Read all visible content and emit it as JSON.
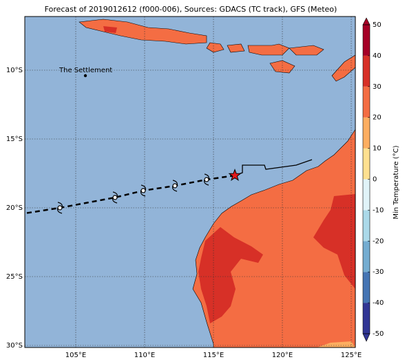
{
  "header": {
    "title": "Forecast of 2019012612 (f000-006), Sources: GDACS (TC track), GFS (Meteo)"
  },
  "map": {
    "xlim": [
      101.3,
      125.3
    ],
    "ylim": [
      -30.15,
      -6.1
    ],
    "xticks": [
      {
        "value": 105,
        "label": "105°E"
      },
      {
        "value": 110,
        "label": "110°E"
      },
      {
        "value": 115,
        "label": "115°E"
      },
      {
        "value": 120,
        "label": "120°E"
      },
      {
        "value": 125,
        "label": "125°E"
      }
    ],
    "yticks": [
      {
        "value": -10,
        "label": "10°S"
      },
      {
        "value": -15,
        "label": "15°S"
      },
      {
        "value": -20,
        "label": "20°S"
      },
      {
        "value": -25,
        "label": "25°S"
      },
      {
        "value": -30,
        "label": "30°S"
      }
    ],
    "places": [
      {
        "name": "The Settlement",
        "lon": 105.7,
        "lat": -10.4
      }
    ],
    "forecast_track": {
      "lon": [
        116.55,
        114.5,
        112.2,
        109.9,
        107.85,
        103.85,
        101.0
      ],
      "lat": [
        -17.65,
        -17.95,
        -18.4,
        -18.75,
        -19.25,
        -20.0,
        -20.45
      ]
    },
    "past_track": {
      "lon": [
        116.55,
        117.1,
        117.1,
        118.7,
        118.8,
        121.0,
        122.15
      ],
      "lat": [
        -17.65,
        -17.45,
        -16.9,
        -16.9,
        -17.2,
        -16.9,
        -16.5
      ]
    }
  },
  "colorbar": {
    "label": "Min Temperature (°C)",
    "lim": [
      -50,
      50
    ],
    "ticks": [
      -50,
      -40,
      -30,
      -20,
      -10,
      0,
      10,
      20,
      30,
      40,
      50
    ],
    "colors": [
      "#313695",
      "#4575b4",
      "#74add1",
      "#abd9e9",
      "#e0f3f8",
      "#fee090",
      "#fdae61",
      "#f46d43",
      "#d73027",
      "#a50026"
    ]
  }
}
